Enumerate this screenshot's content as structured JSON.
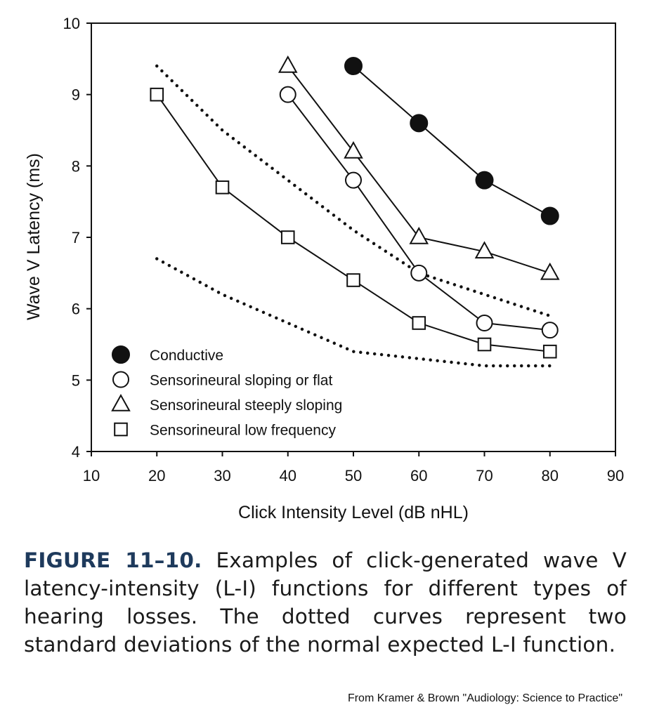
{
  "chart_data": {
    "type": "line",
    "xlabel": "Click Intensity Level (dB nHL)",
    "ylabel": "Wave V Latency (ms)",
    "xlim": [
      10,
      90
    ],
    "ylim": [
      4,
      10
    ],
    "xticks": [
      10,
      20,
      30,
      40,
      50,
      60,
      70,
      80,
      90
    ],
    "yticks": [
      4,
      5,
      6,
      7,
      8,
      9,
      10
    ],
    "grid": false,
    "legend_position": "bottom-left",
    "series": [
      {
        "name": "Conductive",
        "marker": "filled-circle",
        "x": [
          50,
          60,
          70,
          80
        ],
        "y": [
          9.4,
          8.6,
          7.8,
          7.3
        ]
      },
      {
        "name": "Sensorineural sloping or flat",
        "marker": "open-circle",
        "x": [
          40,
          50,
          60,
          70,
          80
        ],
        "y": [
          9.0,
          7.8,
          6.5,
          5.8,
          5.7
        ]
      },
      {
        "name": "Sensorineural steeply sloping",
        "marker": "open-triangle",
        "x": [
          40,
          50,
          60,
          70,
          80
        ],
        "y": [
          9.4,
          8.2,
          7.0,
          6.8,
          6.5
        ]
      },
      {
        "name": "Sensorineural low frequency",
        "marker": "open-square",
        "x": [
          20,
          30,
          40,
          50,
          60,
          70,
          80
        ],
        "y": [
          9.0,
          7.7,
          7.0,
          6.4,
          5.8,
          5.5,
          5.4
        ]
      }
    ],
    "reference_curves": [
      {
        "style": "dotted",
        "x": [
          20,
          30,
          40,
          50,
          60,
          70,
          80
        ],
        "y": [
          9.4,
          8.5,
          7.8,
          7.1,
          6.5,
          6.2,
          5.9
        ]
      },
      {
        "style": "dotted",
        "x": [
          20,
          30,
          40,
          50,
          60,
          70,
          80
        ],
        "y": [
          6.7,
          6.2,
          5.8,
          5.4,
          5.3,
          5.2,
          5.2
        ]
      }
    ]
  },
  "caption": {
    "label": "FIGURE 11–10.",
    "text": " Examples of click-generated wave V latency-intensity (L-I) functions for different types of hearing losses. The dotted curves represent two standard deviations of the normal expected L-I function."
  },
  "credit": "From Kramer & Brown \"Audiology: Science to Practice\"",
  "colors": {
    "ink": "#111111",
    "caption_label": "#1e3a5c"
  }
}
